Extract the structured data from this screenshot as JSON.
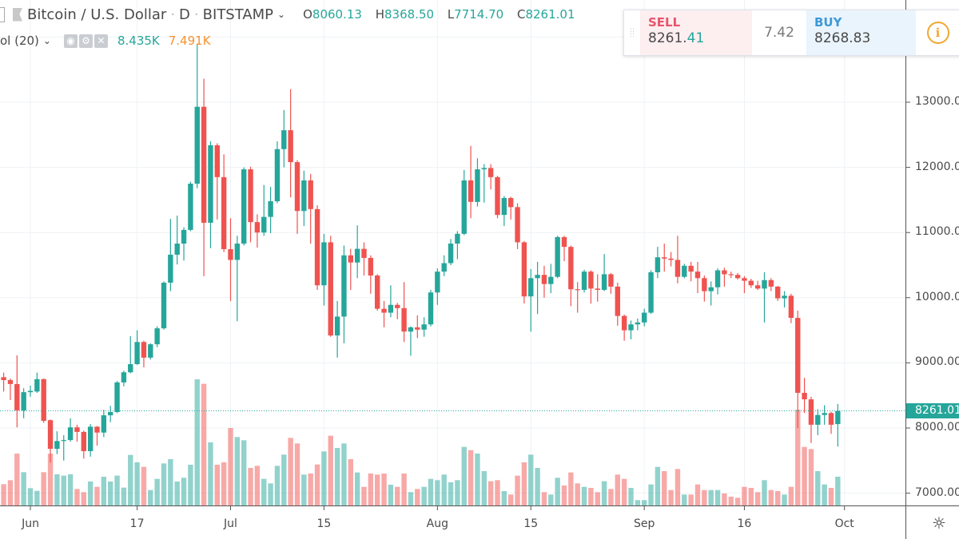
{
  "header": {
    "symbol": "Bitcoin / U.S. Dollar",
    "interval": "D",
    "exchange": "BITSTAMP",
    "separator": "·",
    "ohlc": [
      {
        "key": "O",
        "value": "8060.13"
      },
      {
        "key": "H",
        "value": "8368.50"
      },
      {
        "key": "L",
        "value": "7714.70"
      },
      {
        "key": "C",
        "value": "8261.01"
      }
    ]
  },
  "volume_legend": {
    "name": "ol (20)",
    "icons": [
      "eye-icon",
      "gear-icon",
      "close-icon"
    ],
    "value": "8.435K",
    "ma_value": "7.491K"
  },
  "trade_panel": {
    "sell_label": "SELL",
    "sell_price_main": "8261.",
    "sell_price_dec": "41",
    "spread": "7.42",
    "buy_label": "BUY",
    "buy_price": "8268.83",
    "info_icon": "info-icon"
  },
  "colors": {
    "up": "#26a69a",
    "down": "#ef5350",
    "sell": "#e8546b",
    "buy": "#3d99d8",
    "volume_ma": "#f5922f",
    "info": "#f0a830"
  },
  "chart_data": {
    "type": "candlestick",
    "title": "",
    "ylim": [
      6800,
      14000
    ],
    "grid": true,
    "yticks": [
      "13000.00",
      "12000.00",
      "11000.00",
      "10000.00",
      "9000.00",
      "8000.00",
      "7000.00"
    ],
    "xticks": [
      "Jun",
      "17",
      "Jul",
      "15",
      "Aug",
      "15",
      "Sep",
      "16",
      "Oct"
    ],
    "last_price": "8261.01",
    "columns": [
      "date",
      "open",
      "high",
      "low",
      "close",
      "volume"
    ],
    "candles": [
      [
        "May 28",
        8780,
        8850,
        8560,
        8735,
        6240
      ],
      [
        "May 29",
        8735,
        8760,
        8430,
        8675,
        7400
      ],
      [
        "May 30",
        8675,
        9115,
        8010,
        8270,
        15200
      ],
      [
        "May 31",
        8270,
        8610,
        8150,
        8550,
        9750
      ],
      [
        "Jun 1",
        8550,
        8650,
        8480,
        8570,
        5070
      ],
      [
        "Jun 2",
        8560,
        8850,
        8540,
        8750,
        4290
      ],
      [
        "Jun 3",
        8750,
        8760,
        8080,
        8110,
        9750
      ],
      [
        "Jun 4",
        8120,
        8130,
        7470,
        7680,
        15200
      ],
      [
        "Jun 5",
        7680,
        7950,
        7600,
        7800,
        9130
      ],
      [
        "Jun 6",
        7800,
        7890,
        7500,
        7815,
        8740
      ],
      [
        "Jun 7",
        7815,
        8150,
        7790,
        8010,
        9130
      ],
      [
        "Jun 8",
        8010,
        8050,
        7790,
        7940,
        4840
      ],
      [
        "Jun 9",
        7940,
        7960,
        7530,
        7645,
        3900
      ],
      [
        "Jun 10",
        7645,
        8060,
        7560,
        8020,
        7020
      ],
      [
        "Jun 11",
        8020,
        8030,
        7730,
        7930,
        5460
      ],
      [
        "Jun 12",
        7930,
        8280,
        7860,
        8195,
        8420
      ],
      [
        "Jun 13",
        8195,
        8340,
        8090,
        8245,
        7020
      ],
      [
        "Jun 14",
        8245,
        8720,
        8230,
        8700,
        8740
      ],
      [
        "Jun 15",
        8700,
        8880,
        8640,
        8855,
        5230
      ],
      [
        "Jun 16",
        8855,
        9410,
        8840,
        8980,
        14820
      ],
      [
        "Jun 17",
        8980,
        9500,
        8970,
        9320,
        12640
      ],
      [
        "Jun 18",
        9320,
        9340,
        8930,
        9080,
        11310
      ],
      [
        "Jun 19",
        9080,
        9300,
        9050,
        9285,
        4520
      ],
      [
        "Jun 20",
        9285,
        9560,
        9240,
        9530,
        7800
      ],
      [
        "Jun 21",
        9530,
        10250,
        9510,
        10230,
        12320
      ],
      [
        "Jun 22",
        10230,
        11210,
        10100,
        10660,
        13570
      ],
      [
        "Jun 23",
        10660,
        11260,
        10510,
        10830,
        7020
      ],
      [
        "Jun 24",
        10830,
        11080,
        10570,
        11040,
        8110
      ],
      [
        "Jun 25",
        11040,
        11780,
        11020,
        11750,
        11930
      ],
      [
        "Jun 26",
        11750,
        13900,
        11680,
        12930,
        36970
      ],
      [
        "Jun 27",
        12930,
        13360,
        10330,
        11150,
        35650
      ],
      [
        "Jun 28",
        11150,
        12400,
        10760,
        12340,
        18490
      ],
      [
        "Jun 29",
        12340,
        12370,
        11200,
        11850,
        11930
      ],
      [
        "Jun 30",
        11850,
        12200,
        10700,
        10745,
        12640
      ],
      [
        "Jul 1",
        10745,
        11220,
        9950,
        10580,
        22700
      ],
      [
        "Jul 2",
        10580,
        10950,
        9640,
        10830,
        20050
      ],
      [
        "Jul 3",
        10830,
        12000,
        10800,
        11970,
        19110
      ],
      [
        "Jul 4",
        11970,
        12010,
        10850,
        11160,
        11000
      ],
      [
        "Jul 5",
        11160,
        11280,
        10770,
        11000,
        11620
      ],
      [
        "Jul 6",
        11000,
        11730,
        10950,
        11240,
        7800
      ],
      [
        "Jul 7",
        11240,
        11700,
        10990,
        11480,
        6470
      ],
      [
        "Jul 8",
        11480,
        12400,
        11450,
        12280,
        11620
      ],
      [
        "Jul 9",
        12280,
        12880,
        12000,
        12570,
        14900
      ],
      [
        "Jul 10",
        12570,
        13200,
        11540,
        12080,
        19810
      ],
      [
        "Jul 11",
        12080,
        12110,
        10980,
        11330,
        18170
      ],
      [
        "Jul 12",
        11330,
        11950,
        11100,
        11800,
        9050
      ],
      [
        "Jul 13",
        11800,
        11900,
        10830,
        11360,
        9360
      ],
      [
        "Jul 14",
        11360,
        11420,
        10120,
        10190,
        12010
      ],
      [
        "Jul 15",
        10190,
        10980,
        9880,
        10850,
        15830
      ],
      [
        "Jul 16",
        10850,
        10950,
        9400,
        9420,
        20440
      ],
      [
        "Jul 17",
        9420,
        9950,
        9080,
        9710,
        16850
      ],
      [
        "Jul 18",
        9710,
        10800,
        9300,
        10650,
        18170
      ],
      [
        "Jul 19",
        10650,
        10750,
        10120,
        10540,
        13570
      ],
      [
        "Jul 20",
        10540,
        11110,
        10300,
        10750,
        9670
      ],
      [
        "Jul 21",
        10750,
        10850,
        10340,
        10610,
        5460
      ],
      [
        "Jul 22",
        10610,
        10650,
        10060,
        10340,
        9360
      ],
      [
        "Jul 23",
        10340,
        10360,
        9800,
        9830,
        9050
      ],
      [
        "Jul 24",
        9830,
        9950,
        9545,
        9770,
        9360
      ],
      [
        "Jul 25",
        9770,
        10190,
        9700,
        9890,
        6080
      ],
      [
        "Jul 26",
        9890,
        9920,
        9670,
        9840,
        5460
      ],
      [
        "Jul 27",
        9840,
        10240,
        9320,
        9480,
        9360
      ],
      [
        "Jul 28",
        9480,
        9560,
        9110,
        9545,
        3900
      ],
      [
        "Jul 29",
        9545,
        9730,
        9380,
        9510,
        4840
      ],
      [
        "Jul 30",
        9510,
        9700,
        9400,
        9590,
        5460
      ],
      [
        "Jul 31",
        9590,
        10120,
        9560,
        10080,
        7800
      ],
      [
        "Aug 1",
        10080,
        10450,
        9890,
        10400,
        7410
      ],
      [
        "Aug 2",
        10400,
        10650,
        10330,
        10530,
        9050
      ],
      [
        "Aug 3",
        10530,
        10900,
        10500,
        10830,
        6790
      ],
      [
        "Aug 4",
        10830,
        11020,
        10590,
        10980,
        7410
      ],
      [
        "Aug 5",
        10980,
        11960,
        10960,
        11800,
        17160
      ],
      [
        "Aug 6",
        11800,
        12330,
        11220,
        11470,
        16220
      ],
      [
        "Aug 7",
        11470,
        12140,
        11400,
        11970,
        15210
      ],
      [
        "Aug 8",
        11970,
        12050,
        11460,
        11990,
        10060
      ],
      [
        "Aug 9",
        11990,
        12050,
        11660,
        11850,
        7100
      ],
      [
        "Aug 10",
        11850,
        11870,
        11220,
        11270,
        7410
      ],
      [
        "Aug 11",
        11270,
        11560,
        11100,
        11530,
        4210
      ],
      [
        "Aug 12",
        11530,
        11550,
        11200,
        11390,
        3200
      ],
      [
        "Aug 13",
        11390,
        11450,
        10745,
        10850,
        8740
      ],
      [
        "Aug 14",
        10850,
        10870,
        9910,
        10020,
        12640
      ],
      [
        "Aug 15",
        10020,
        10440,
        9480,
        10300,
        14900
      ],
      [
        "Aug 16",
        10300,
        10550,
        9750,
        10350,
        11000
      ],
      [
        "Aug 17",
        10350,
        10490,
        10000,
        10210,
        3900
      ],
      [
        "Aug 18",
        10210,
        10520,
        10070,
        10320,
        3200
      ],
      [
        "Aug 19",
        10320,
        10950,
        10300,
        10930,
        8110
      ],
      [
        "Aug 20",
        10930,
        10950,
        10560,
        10780,
        5850
      ],
      [
        "Aug 21",
        10780,
        10800,
        9870,
        10130,
        9670
      ],
      [
        "Aug 22",
        10130,
        10240,
        9770,
        10120,
        6470
      ],
      [
        "Aug 23",
        10120,
        10430,
        10080,
        10400,
        5460
      ],
      [
        "Aug 24",
        10400,
        10420,
        9910,
        10140,
        5150
      ],
      [
        "Aug 25",
        10140,
        10360,
        9940,
        10120,
        3900
      ],
      [
        "Aug 26",
        10120,
        10670,
        10100,
        10360,
        7100
      ],
      [
        "Aug 27",
        10360,
        10380,
        10060,
        10170,
        4840
      ],
      [
        "Aug 28",
        10170,
        10230,
        9570,
        9720,
        9050
      ],
      [
        "Aug 29",
        9720,
        9740,
        9340,
        9500,
        7800
      ],
      [
        "Aug 30",
        9500,
        9650,
        9360,
        9590,
        5150
      ],
      [
        "Aug 31",
        9590,
        9680,
        9500,
        9620,
        1560
      ],
      [
        "Sep 1",
        9620,
        9830,
        9560,
        9770,
        1560
      ],
      [
        "Sep 2",
        9770,
        10420,
        9750,
        10390,
        6160
      ],
      [
        "Sep 3",
        10390,
        10780,
        10300,
        10620,
        11310
      ],
      [
        "Sep 4",
        10620,
        10830,
        10400,
        10600,
        10060
      ],
      [
        "Sep 5",
        10600,
        10700,
        10480,
        10580,
        4520
      ],
      [
        "Sep 6",
        10580,
        10950,
        10220,
        10320,
        10690
      ],
      [
        "Sep 7",
        10320,
        10520,
        10300,
        10490,
        3200
      ],
      [
        "Sep 8",
        10490,
        10550,
        10250,
        10400,
        3200
      ],
      [
        "Sep 9",
        10400,
        10550,
        10070,
        10300,
        6160
      ],
      [
        "Sep 10",
        10300,
        10340,
        9940,
        10100,
        4520
      ],
      [
        "Sep 11",
        10100,
        10250,
        9880,
        10160,
        4520
      ],
      [
        "Sep 12",
        10160,
        10450,
        10050,
        10420,
        4520
      ],
      [
        "Sep 13",
        10420,
        10460,
        10170,
        10360,
        3510
      ],
      [
        "Sep 14",
        10360,
        10400,
        10300,
        10350,
        2570
      ],
      [
        "Sep 15",
        10350,
        10380,
        10280,
        10300,
        2260
      ],
      [
        "Sep 16",
        10300,
        10330,
        10070,
        10260,
        5460
      ],
      [
        "Sep 17",
        10260,
        10290,
        10150,
        10190,
        5150
      ],
      [
        "Sep 18",
        10190,
        10260,
        10120,
        10140,
        3900
      ],
      [
        "Sep 19",
        10140,
        10390,
        9620,
        10270,
        7410
      ],
      [
        "Sep 20",
        10270,
        10300,
        10100,
        10170,
        4520
      ],
      [
        "Sep 21",
        10170,
        10180,
        9950,
        9990,
        4210
      ],
      [
        "Sep 22",
        9990,
        10100,
        9850,
        10030,
        3200
      ],
      [
        "Sep 23",
        10030,
        10060,
        9610,
        9690,
        5460
      ],
      [
        "Sep 24",
        9690,
        9800,
        8000,
        8540,
        28080
      ],
      [
        "Sep 25",
        8540,
        8770,
        8230,
        8440,
        17160
      ],
      [
        "Sep 26",
        8440,
        8480,
        7770,
        8050,
        16540
      ],
      [
        "Sep 27",
        8050,
        8290,
        7890,
        8200,
        10060
      ],
      [
        "Sep 28",
        8200,
        8350,
        8050,
        8230,
        6160
      ],
      [
        "Sep 29",
        8230,
        8250,
        7910,
        8050,
        5150
      ],
      [
        "Sep 30",
        8060.13,
        8368.5,
        7714.7,
        8261.01,
        8435
      ]
    ]
  }
}
